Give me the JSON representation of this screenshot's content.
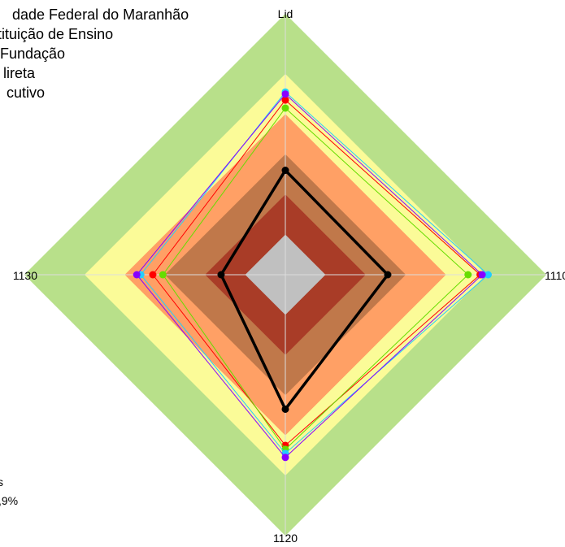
{
  "chart_data": {
    "type": "radar",
    "axes": [
      {
        "name": "Lid",
        "direction": "top"
      },
      {
        "name": "1110",
        "direction": "right"
      },
      {
        "name": "1120",
        "direction": "bottom"
      },
      {
        "name": "1130",
        "direction": "left"
      }
    ],
    "scale": {
      "min": 0,
      "max": 100
    },
    "bands": [
      {
        "from": 0,
        "to": 20,
        "color": "#c0c0c0"
      },
      {
        "from": 20,
        "to": 40,
        "color": "#a93c27"
      },
      {
        "from": 40,
        "to": 60,
        "color": "#c0784a"
      },
      {
        "from": 60,
        "to": 80,
        "color": "#ffa065"
      },
      {
        "from": 80,
        "to": 100,
        "color": "#fbfb98"
      },
      {
        "from": 100,
        "to": 130,
        "color": "#b8e08a"
      }
    ],
    "grid": true,
    "legend_placement": "top-left (partially cropped)",
    "legend_entries": [
      "dade Federal do Maranhão",
      "tituição de Ensino",
      "Fundação",
      "lireta",
      "cutivo"
    ],
    "series": [
      {
        "name": "dade Federal do Maranhão",
        "color": "#000000",
        "values": {
          "Lid": 52,
          "1110": 51,
          "1120": 67,
          "1130": 32
        }
      },
      {
        "name": "tituição de Ensino",
        "color": "#ff0000",
        "values": {
          "Lid": 87,
          "1110": 97,
          "1120": 85,
          "1130": 66
        }
      },
      {
        "name": "Fundação",
        "color": "#66dd00",
        "values": {
          "Lid": 83,
          "1110": 91,
          "1120": 87,
          "1130": 61
        }
      },
      {
        "name": "lireta",
        "color": "#22ccff",
        "values": {
          "Lid": 91,
          "1110": 101,
          "1120": 89,
          "1130": 72
        }
      },
      {
        "name": "cutivo",
        "color": "#8800ff",
        "values": {
          "Lid": 90,
          "1110": 98,
          "1120": 91,
          "1130": 74
        }
      }
    ],
    "extra_labels": [
      "s",
      ",9%"
    ]
  }
}
